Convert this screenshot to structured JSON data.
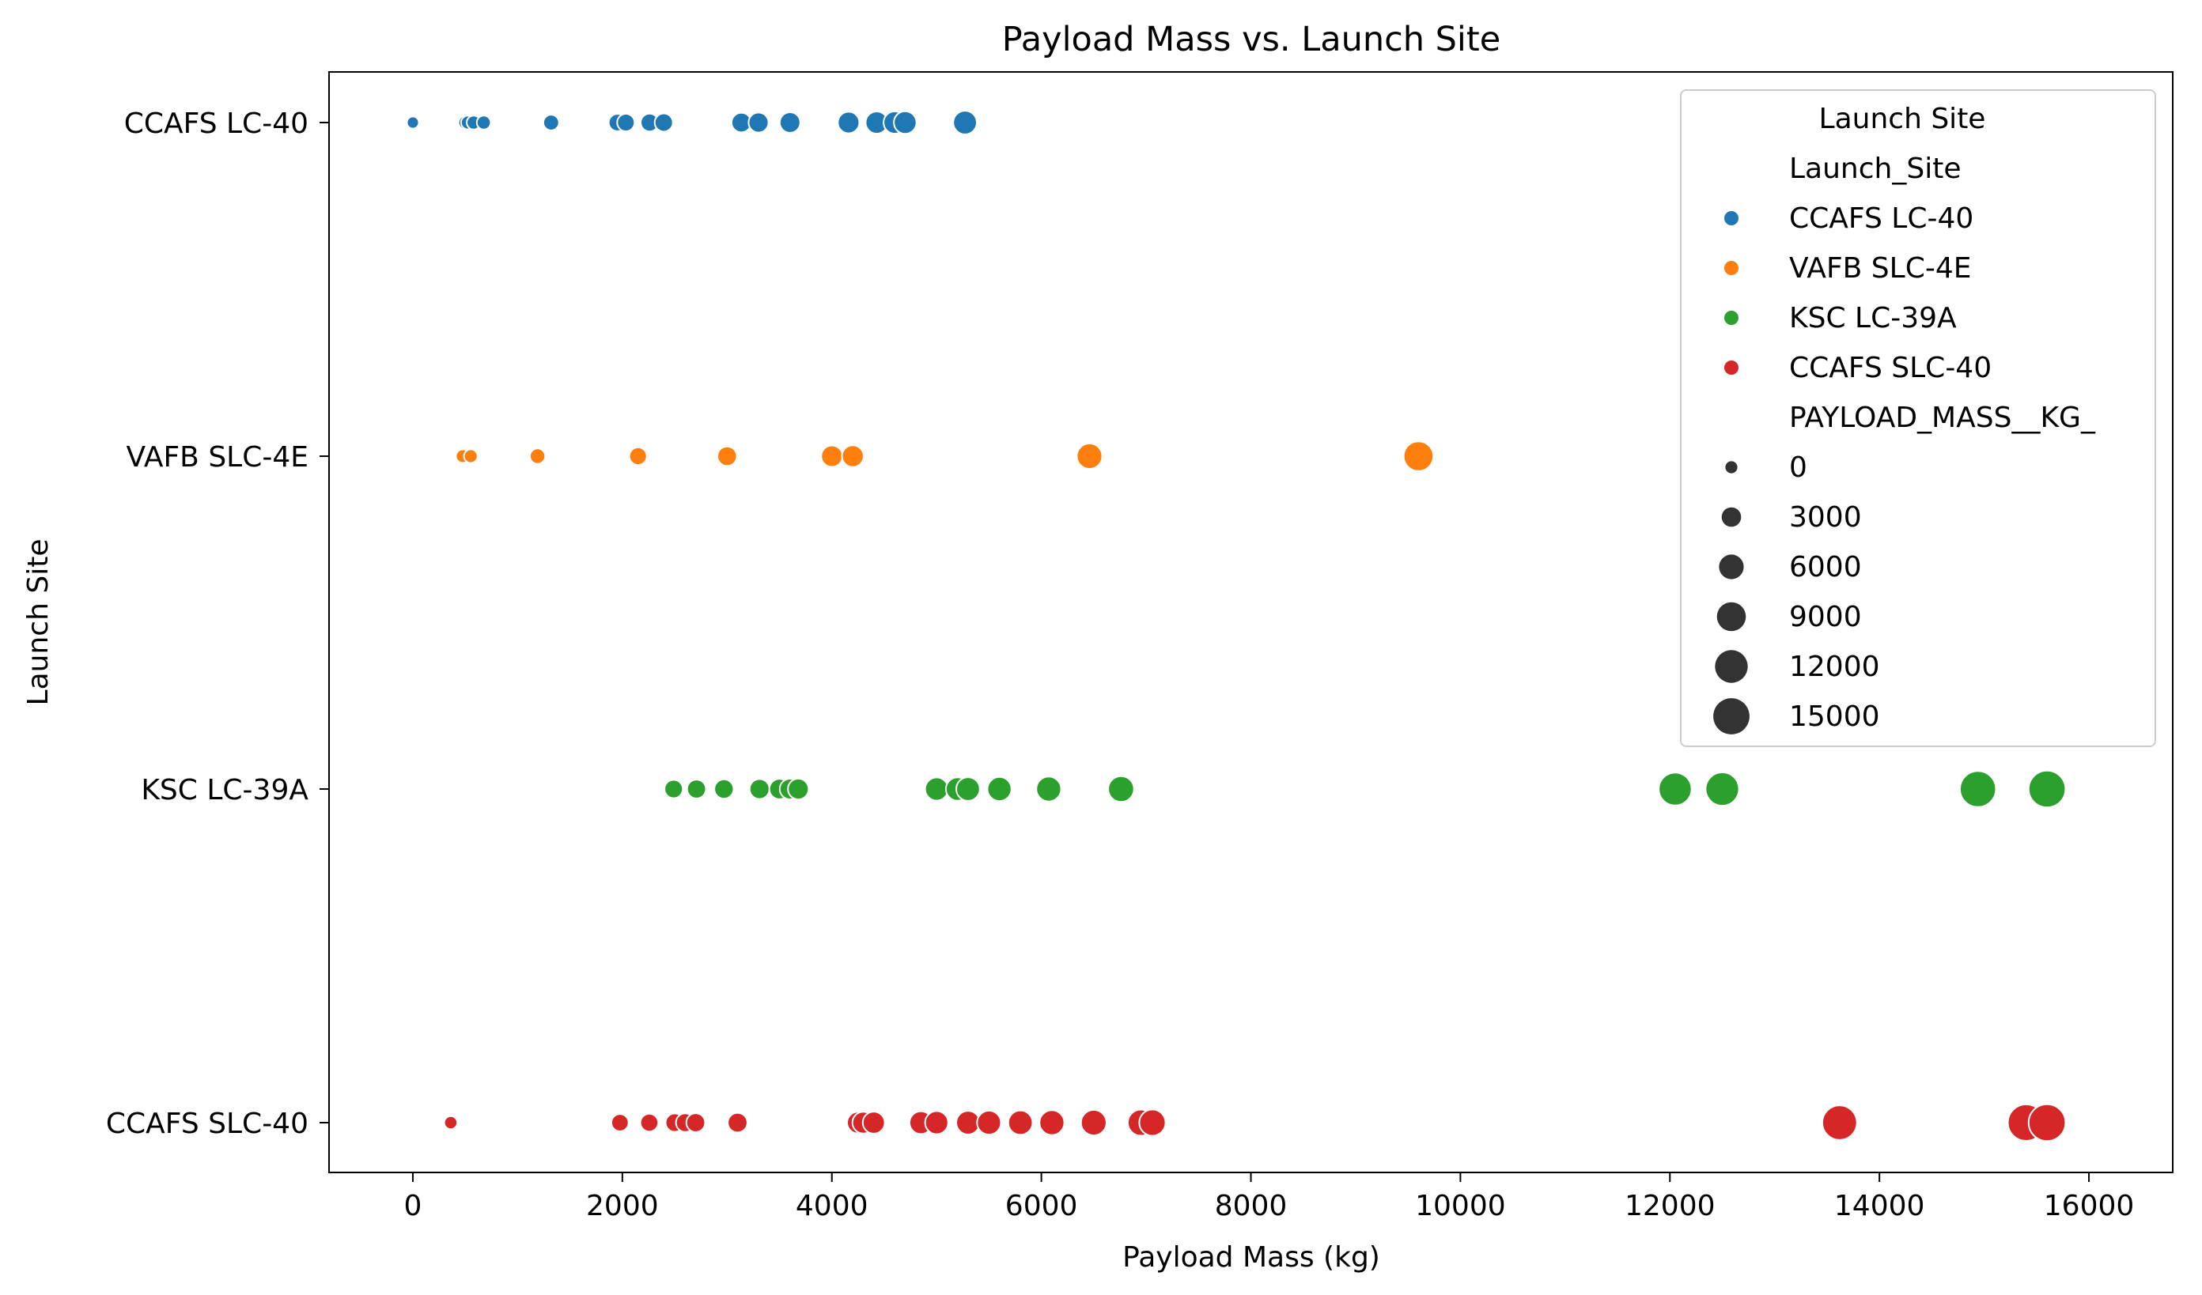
{
  "chart_data": {
    "type": "scatter",
    "title": "Payload Mass vs. Launch Site",
    "xlabel": "Payload Mass (kg)",
    "ylabel": "Launch Site",
    "xlim": [
      -800,
      16800
    ],
    "x_ticks": [
      0,
      2000,
      4000,
      6000,
      8000,
      10000,
      12000,
      14000,
      16000
    ],
    "categories": [
      "CCAFS LC-40",
      "VAFB SLC-4E",
      "KSC LC-39A",
      "CCAFS SLC-40"
    ],
    "grid": false,
    "legend": {
      "title": "Launch Site",
      "placement": "top-right",
      "hue_title": "Launch_Site",
      "size_title": "PAYLOAD_MASS__KG_",
      "size_values": [
        0,
        3000,
        6000,
        9000,
        12000,
        15000
      ]
    },
    "size_range_kg": [
      0,
      15600
    ],
    "series": [
      {
        "name": "CCAFS LC-40",
        "color": "#1f77b4",
        "values": [
          0,
          500,
          525,
          580,
          677,
          1320,
          1952,
          2034,
          2260,
          2395,
          3136,
          3300,
          3600,
          4160,
          4428,
          4600,
          4700,
          5271
        ]
      },
      {
        "name": "VAFB SLC-4E",
        "color": "#ff7f0e",
        "values": [
          475,
          553,
          1190,
          2150,
          3000,
          4000,
          4200,
          6460,
          9600
        ]
      },
      {
        "name": "KSC LC-39A",
        "color": "#2ca02c",
        "values": [
          2490,
          2708,
          2970,
          3310,
          3500,
          3600,
          3680,
          5000,
          5200,
          5300,
          5600,
          6070,
          6761,
          12050,
          12500,
          14940,
          15600
        ]
      },
      {
        "name": "CCAFS SLC-40",
        "color": "#d62728",
        "values": [
          362,
          1977,
          2257,
          2500,
          2600,
          2700,
          3100,
          4250,
          4300,
          4400,
          4850,
          5000,
          5300,
          5500,
          5800,
          6100,
          6500,
          6950,
          7060,
          13620,
          15400,
          15600
        ]
      }
    ]
  }
}
